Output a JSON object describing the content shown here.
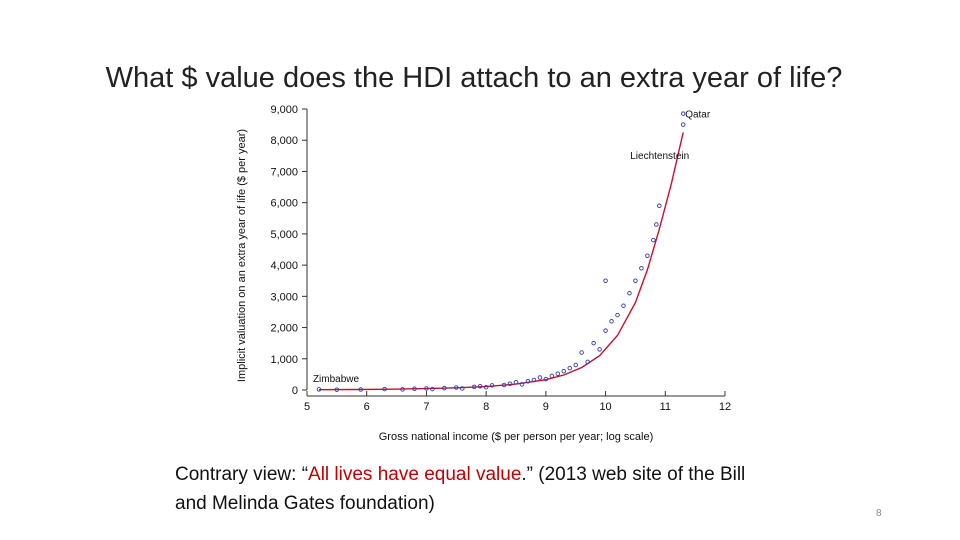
{
  "slide": {
    "title": "What $ value does the HDI attach to an extra year of life?",
    "quote_prefix": "Contrary view: “",
    "quote_highlight": "All lives have equal value",
    "quote_suffix": ".” (2013 web site of the Bill and Melinda Gates foundation)",
    "page_number": "8"
  },
  "colors": {
    "curve": "#c8102e",
    "points": "#2b3fb3",
    "accent_text": "#c00000"
  },
  "chart_data": {
    "type": "scatter",
    "xlabel": "Gross national income ($ per person per year; log scale)",
    "ylabel": "Implicit valuation on an extra year of life ($ per year)",
    "xlim": [
      5,
      12
    ],
    "ylim": [
      0,
      9000
    ],
    "xticks": [
      5,
      6,
      7,
      8,
      9,
      10,
      11,
      12
    ],
    "yticks": [
      0,
      1000,
      2000,
      3000,
      4000,
      5000,
      6000,
      7000,
      8000,
      9000
    ],
    "ytick_labels": [
      "0",
      "1,000",
      "2,000",
      "3,000",
      "4,000",
      "5,000",
      "6,000",
      "7,000",
      "8,000",
      "9,000"
    ],
    "grid": false,
    "annotations": [
      {
        "text": "Qatar",
        "x": 11.3,
        "y": 8850
      },
      {
        "text": "Liechtenstein",
        "x": 11.3,
        "y": 8100
      },
      {
        "text": "Zimbabwe",
        "x": 5.2,
        "y": 200
      }
    ],
    "curve": {
      "name": "",
      "x": [
        5.2,
        5.8,
        6.4,
        7.0,
        7.5,
        8.0,
        8.5,
        9.0,
        9.3,
        9.6,
        9.9,
        10.2,
        10.5,
        10.7,
        10.9,
        11.1,
        11.3
      ],
      "y": [
        10,
        15,
        25,
        45,
        70,
        110,
        190,
        330,
        480,
        720,
        1100,
        1750,
        2800,
        3850,
        5150,
        6600,
        8250
      ]
    },
    "points": [
      {
        "x": 5.2,
        "y": 20
      },
      {
        "x": 5.5,
        "y": 10
      },
      {
        "x": 5.9,
        "y": 15
      },
      {
        "x": 6.3,
        "y": 30
      },
      {
        "x": 6.6,
        "y": 20
      },
      {
        "x": 6.8,
        "y": 40
      },
      {
        "x": 7.0,
        "y": 50
      },
      {
        "x": 7.1,
        "y": 30
      },
      {
        "x": 7.3,
        "y": 60
      },
      {
        "x": 7.5,
        "y": 80
      },
      {
        "x": 7.6,
        "y": 50
      },
      {
        "x": 7.8,
        "y": 100
      },
      {
        "x": 7.9,
        "y": 120
      },
      {
        "x": 8.0,
        "y": 90
      },
      {
        "x": 8.1,
        "y": 150
      },
      {
        "x": 8.3,
        "y": 160
      },
      {
        "x": 8.4,
        "y": 200
      },
      {
        "x": 8.5,
        "y": 250
      },
      {
        "x": 8.6,
        "y": 180
      },
      {
        "x": 8.7,
        "y": 280
      },
      {
        "x": 8.8,
        "y": 320
      },
      {
        "x": 8.9,
        "y": 400
      },
      {
        "x": 9.0,
        "y": 350
      },
      {
        "x": 9.1,
        "y": 450
      },
      {
        "x": 9.2,
        "y": 520
      },
      {
        "x": 9.3,
        "y": 600
      },
      {
        "x": 9.4,
        "y": 700
      },
      {
        "x": 9.5,
        "y": 800
      },
      {
        "x": 9.6,
        "y": 1200
      },
      {
        "x": 9.7,
        "y": 900
      },
      {
        "x": 9.8,
        "y": 1500
      },
      {
        "x": 9.9,
        "y": 1300
      },
      {
        "x": 10.0,
        "y": 1900
      },
      {
        "x": 10.0,
        "y": 3500
      },
      {
        "x": 10.1,
        "y": 2200
      },
      {
        "x": 10.2,
        "y": 2400
      },
      {
        "x": 10.3,
        "y": 2700
      },
      {
        "x": 10.4,
        "y": 3100
      },
      {
        "x": 10.5,
        "y": 3500
      },
      {
        "x": 10.6,
        "y": 3900
      },
      {
        "x": 10.7,
        "y": 4300
      },
      {
        "x": 10.8,
        "y": 4800
      },
      {
        "x": 10.85,
        "y": 5300
      },
      {
        "x": 10.9,
        "y": 5900
      },
      {
        "x": 11.3,
        "y": 8850
      },
      {
        "x": 11.3,
        "y": 8500
      }
    ]
  }
}
